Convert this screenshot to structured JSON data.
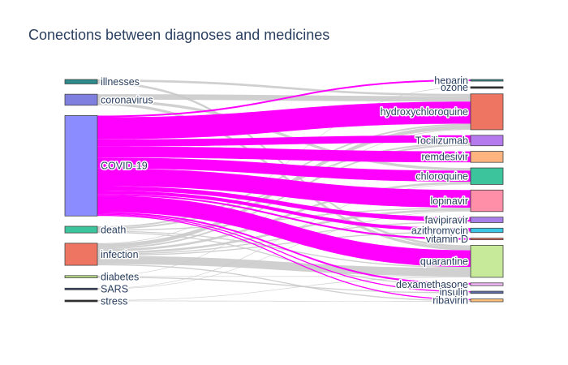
{
  "chart_data": {
    "type": "sankey",
    "title": "Conections between diagnoses and medicines",
    "colors": {
      "link_highlight": "#ff00ff",
      "link_default": "#c8c8c8",
      "node_border": "#444444"
    },
    "sources": [
      {
        "name": "illnesses",
        "color": "#2e8b8b"
      },
      {
        "name": "coronavirus",
        "color": "#7f7fe0"
      },
      {
        "name": "COVID-19",
        "color": "#8b8cff"
      },
      {
        "name": "death",
        "color": "#3cc49c"
      },
      {
        "name": "infection",
        "color": "#ef7563"
      },
      {
        "name": "diabetes",
        "color": "#bde28a"
      },
      {
        "name": "SARS",
        "color": "#2a3f5f"
      },
      {
        "name": "stress",
        "color": "#222222"
      }
    ],
    "targets": [
      {
        "name": "heparin",
        "color": "#2e8b8b"
      },
      {
        "name": "ozone",
        "color": "#222222"
      },
      {
        "name": "hydroxychloroquine",
        "color": "#ef7563"
      },
      {
        "name": "Tocilizumab",
        "color": "#b57aee"
      },
      {
        "name": "remdesivir",
        "color": "#ffb480"
      },
      {
        "name": "chloroquine",
        "color": "#3cc49c"
      },
      {
        "name": "lopinavir",
        "color": "#ff8fa8"
      },
      {
        "name": "favipiravir",
        "color": "#a87ee8"
      },
      {
        "name": "azithromycin",
        "color": "#3cc6e6"
      },
      {
        "name": "vitamin D",
        "color": "#ef7563"
      },
      {
        "name": "quarantine",
        "color": "#c6e99a"
      },
      {
        "name": "dexamethasone",
        "color": "#f2b6f6"
      },
      {
        "name": "insulin",
        "color": "#5b6aa8"
      },
      {
        "name": "ribavirin",
        "color": "#ffc07a"
      }
    ],
    "links": [
      {
        "source": "illnesses",
        "target": "hydroxychloroquine",
        "value": 0.4,
        "highlight": false
      },
      {
        "source": "illnesses",
        "target": "quarantine",
        "value": 0.4,
        "highlight": false
      },
      {
        "source": "coronavirus",
        "target": "hydroxychloroquine",
        "value": 1,
        "highlight": false
      },
      {
        "source": "coronavirus",
        "target": "chloroquine",
        "value": 0.5,
        "highlight": false
      },
      {
        "source": "coronavirus",
        "target": "quarantine",
        "value": 0.5,
        "highlight": false
      },
      {
        "source": "COVID-19",
        "target": "heparin",
        "value": 0.3,
        "highlight": true
      },
      {
        "source": "COVID-19",
        "target": "hydroxychloroquine",
        "value": 4,
        "highlight": true
      },
      {
        "source": "COVID-19",
        "target": "Tocilizumab",
        "value": 1.3,
        "highlight": true
      },
      {
        "source": "COVID-19",
        "target": "remdesivir",
        "value": 2,
        "highlight": true
      },
      {
        "source": "COVID-19",
        "target": "chloroquine",
        "value": 2,
        "highlight": true
      },
      {
        "source": "COVID-19",
        "target": "lopinavir",
        "value": 3.2,
        "highlight": true
      },
      {
        "source": "COVID-19",
        "target": "favipiravir",
        "value": 0.8,
        "highlight": true
      },
      {
        "source": "COVID-19",
        "target": "azithromycin",
        "value": 0.6,
        "highlight": true
      },
      {
        "source": "COVID-19",
        "target": "vitamin D",
        "value": 0.3,
        "highlight": true
      },
      {
        "source": "COVID-19",
        "target": "quarantine",
        "value": 3,
        "highlight": true
      },
      {
        "source": "COVID-19",
        "target": "dexamethasone",
        "value": 0.3,
        "highlight": true
      },
      {
        "source": "COVID-19",
        "target": "insulin",
        "value": 0.2,
        "highlight": true
      },
      {
        "source": "COVID-19",
        "target": "ribavirin",
        "value": 0.2,
        "highlight": true
      },
      {
        "source": "death",
        "target": "hydroxychloroquine",
        "value": 0.3,
        "highlight": false
      },
      {
        "source": "death",
        "target": "Tocilizumab",
        "value": 0.3,
        "highlight": false
      },
      {
        "source": "death",
        "target": "lopinavir",
        "value": 0.2,
        "highlight": false
      },
      {
        "source": "death",
        "target": "quarantine",
        "value": 0.2,
        "highlight": false
      },
      {
        "source": "death",
        "target": "dexamethasone",
        "value": 0.2,
        "highlight": false
      },
      {
        "source": "infection",
        "target": "ozone",
        "value": 0.1,
        "highlight": false
      },
      {
        "source": "infection",
        "target": "hydroxychloroquine",
        "value": 0.7,
        "highlight": false
      },
      {
        "source": "infection",
        "target": "Tocilizumab",
        "value": 0.3,
        "highlight": false
      },
      {
        "source": "infection",
        "target": "chloroquine",
        "value": 0.4,
        "highlight": false
      },
      {
        "source": "infection",
        "target": "lopinavir",
        "value": 0.4,
        "highlight": false
      },
      {
        "source": "infection",
        "target": "favipiravir",
        "value": 0.2,
        "highlight": false
      },
      {
        "source": "infection",
        "target": "azithromycin",
        "value": 0.2,
        "highlight": false
      },
      {
        "source": "infection",
        "target": "quarantine",
        "value": 1.5,
        "highlight": false
      },
      {
        "source": "infection",
        "target": "ribavirin",
        "value": 0.2,
        "highlight": false
      },
      {
        "source": "diabetes",
        "target": "hydroxychloroquine",
        "value": 0.1,
        "highlight": false
      },
      {
        "source": "diabetes",
        "target": "quarantine",
        "value": 0.1,
        "highlight": false
      },
      {
        "source": "diabetes",
        "target": "insulin",
        "value": 0.2,
        "highlight": false
      },
      {
        "source": "SARS",
        "target": "chloroquine",
        "value": 0.1,
        "highlight": false
      },
      {
        "source": "SARS",
        "target": "lopinavir",
        "value": 0.1,
        "highlight": false
      },
      {
        "source": "stress",
        "target": "quarantine",
        "value": 0.1,
        "highlight": false
      },
      {
        "source": "stress",
        "target": "ribavirin",
        "value": 0.1,
        "highlight": false
      }
    ]
  }
}
